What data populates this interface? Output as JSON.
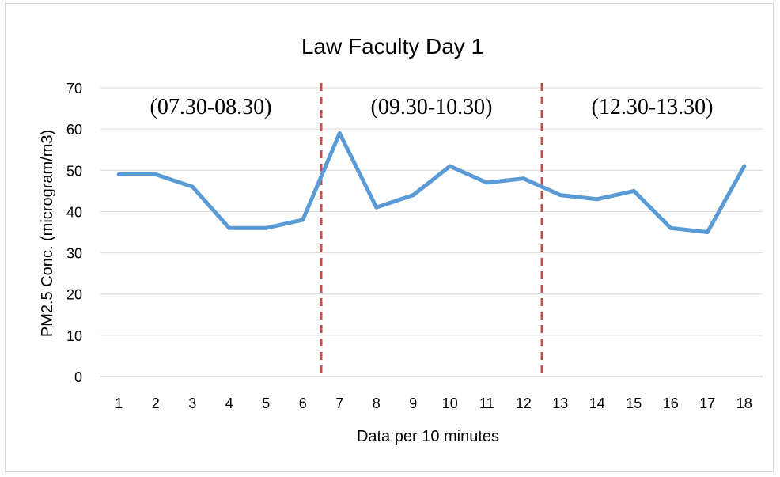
{
  "chart_data": {
    "type": "line",
    "title": "Law Faculty Day 1",
    "xlabel": "Data per 10 minutes",
    "ylabel": "PM2.5 Conc. (microgram/m3)",
    "categories": [
      "1",
      "2",
      "3",
      "4",
      "5",
      "6",
      "7",
      "8",
      "9",
      "10",
      "11",
      "12",
      "13",
      "14",
      "15",
      "16",
      "17",
      "18"
    ],
    "series": [
      {
        "values": [
          49,
          49,
          46,
          36,
          36,
          38,
          59,
          41,
          44,
          51,
          47,
          48,
          44,
          43,
          45,
          36,
          35,
          51
        ]
      }
    ],
    "ylim": [
      0,
      70
    ],
    "yticks": [
      0,
      10,
      20,
      30,
      40,
      50,
      60,
      70
    ],
    "grid": true,
    "line_color": "#5b9bd5",
    "divider_color": "#c0504d",
    "dividers_between": [
      6,
      12
    ],
    "annotations": [
      "(07.30-08.30)",
      "(09.30-10.30)",
      "(12.30-13.30)"
    ]
  }
}
